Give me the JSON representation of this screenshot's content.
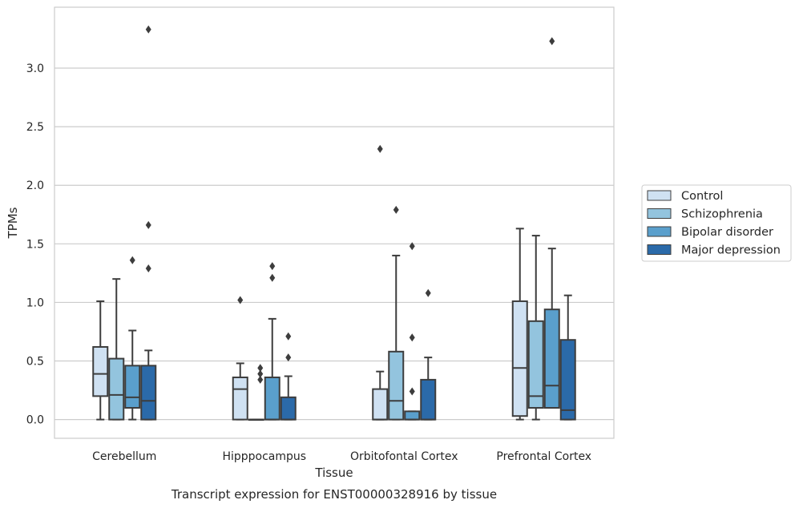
{
  "chart_data": {
    "type": "boxplot",
    "title": "Transcript expression for ENST00000328916 by tissue",
    "xlabel": "Tissue",
    "ylabel": "TPMs",
    "ylim": [
      -0.16,
      3.52
    ],
    "yticks": [
      0.0,
      0.5,
      1.0,
      1.5,
      2.0,
      2.5,
      3.0
    ],
    "ytick_labels": [
      "0.0",
      "0.5",
      "1.0",
      "1.5",
      "2.0",
      "2.5",
      "3.0"
    ],
    "grid": true,
    "legend_position": "right",
    "categories": [
      "Cerebellum",
      "Hipppocampus",
      "Orbitofontal Cortex",
      "Prefrontal Cortex"
    ],
    "series": [
      {
        "name": "Control",
        "color": "#cfe1f2",
        "boxes": [
          {
            "whislo": 0.0,
            "q1": 0.2,
            "med": 0.39,
            "q3": 0.62,
            "whishi": 1.01,
            "fliers": []
          },
          {
            "whislo": 0.0,
            "q1": 0.0,
            "med": 0.26,
            "q3": 0.36,
            "whishi": 0.48,
            "fliers": [
              1.02
            ]
          },
          {
            "whislo": 0.0,
            "q1": 0.0,
            "med": 0.0,
            "q3": 0.26,
            "whishi": 0.41,
            "fliers": [
              2.31
            ]
          },
          {
            "whislo": 0.0,
            "q1": 0.03,
            "med": 0.44,
            "q3": 1.01,
            "whishi": 1.63,
            "fliers": []
          }
        ]
      },
      {
        "name": "Schizophrenia",
        "color": "#93c4de",
        "boxes": [
          {
            "whislo": 0.0,
            "q1": 0.0,
            "med": 0.21,
            "q3": 0.52,
            "whishi": 1.2,
            "fliers": []
          },
          {
            "whislo": 0.0,
            "q1": 0.0,
            "med": 0.0,
            "q3": 0.0,
            "whishi": 0.0,
            "fliers": []
          },
          {
            "whislo": 0.0,
            "q1": 0.0,
            "med": 0.16,
            "q3": 0.58,
            "whishi": 1.4,
            "fliers": [
              1.79
            ]
          },
          {
            "whislo": 0.0,
            "q1": 0.1,
            "med": 0.2,
            "q3": 0.84,
            "whishi": 1.57,
            "fliers": []
          }
        ]
      },
      {
        "name": "Bipolar disorder",
        "color": "#5a9fcc",
        "boxes": [
          {
            "whislo": 0.0,
            "q1": 0.1,
            "med": 0.19,
            "q3": 0.46,
            "whishi": 0.76,
            "fliers": [
              1.36
            ]
          },
          {
            "whislo": 0.0,
            "q1": 0.0,
            "med": 0.0,
            "q3": 0.36,
            "whishi": 0.86,
            "fliers": [
              1.21,
              1.31
            ]
          },
          {
            "whislo": 0.0,
            "q1": 0.0,
            "med": 0.0,
            "q3": 0.07,
            "whishi": 0.07,
            "fliers": [
              0.24,
              0.7,
              1.48
            ]
          },
          {
            "whislo": 0.1,
            "q1": 0.1,
            "med": 0.29,
            "q3": 0.94,
            "whishi": 1.46,
            "fliers": [
              3.23
            ]
          }
        ]
      },
      {
        "name": "Major depression",
        "color": "#2b6aa9",
        "boxes": [
          {
            "whislo": 0.0,
            "q1": 0.0,
            "med": 0.16,
            "q3": 0.46,
            "whishi": 0.59,
            "fliers": [
              1.29,
              1.66,
              3.33
            ]
          },
          {
            "whislo": 0.0,
            "q1": 0.0,
            "med": 0.0,
            "q3": 0.19,
            "whishi": 0.37,
            "fliers": [
              0.53,
              0.71
            ]
          },
          {
            "whislo": 0.0,
            "q1": 0.0,
            "med": 0.0,
            "q3": 0.34,
            "whishi": 0.53,
            "fliers": [
              1.08
            ]
          },
          {
            "whislo": 0.0,
            "q1": 0.0,
            "med": 0.08,
            "q3": 0.68,
            "whishi": 1.06,
            "fliers": []
          }
        ]
      }
    ],
    "extra_fliers": [
      {
        "category": 1,
        "values": [
          0.34,
          0.39,
          0.44
        ]
      }
    ]
  }
}
